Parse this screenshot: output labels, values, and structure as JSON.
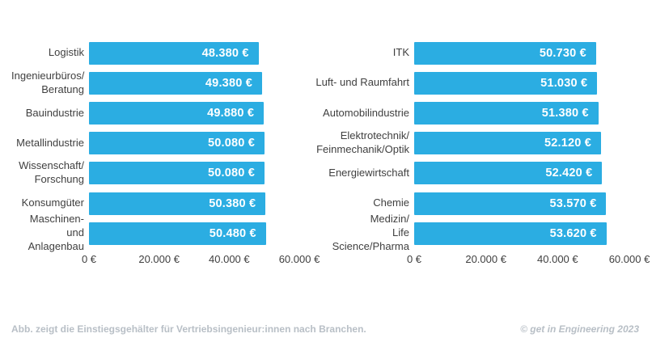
{
  "colors": {
    "bar": "#2BADE2",
    "category_text": "#3F3F3F",
    "value_text": "#FFFFFF",
    "footer_text": "#B8BFC6"
  },
  "footer": {
    "caption": "Abb. zeigt die Einstiegsgehälter für Vertriebsingenieur:innen nach Branchen.",
    "credit": "© get in Engineering 2023"
  },
  "chart_data": [
    {
      "type": "bar",
      "orientation": "horizontal",
      "title": "",
      "xlabel": "",
      "ylabel": "",
      "xlim": [
        0,
        60000
      ],
      "grid": false,
      "legend": false,
      "categories": [
        "Logistik",
        "Ingenieurbüros/\nBeratung",
        "Bauindustrie",
        "Metallindustrie",
        "Wissenschaft/\nForschung",
        "Konsumgüter",
        "Maschinen- und\nAnlagenbau"
      ],
      "values": [
        48380,
        49380,
        49880,
        50080,
        50080,
        50380,
        50480
      ],
      "value_labels": [
        "48.380 €",
        "49.380 €",
        "49.880 €",
        "50.080 €",
        "50.080 €",
        "50.380 €",
        "50.480 €"
      ],
      "x_ticks": [
        {
          "value": 0,
          "label": "0 €"
        },
        {
          "value": 20000,
          "label": "20.000 €"
        },
        {
          "value": 40000,
          "label": "40.000 €"
        },
        {
          "value": 60000,
          "label": "60.000 €"
        }
      ]
    },
    {
      "type": "bar",
      "orientation": "horizontal",
      "title": "",
      "xlabel": "",
      "ylabel": "",
      "xlim": [
        0,
        60000
      ],
      "grid": false,
      "legend": false,
      "categories": [
        "ITK",
        "Luft- und Raumfahrt",
        "Automobilindustrie",
        "Elektrotechnik/\nFeinmechanik/Optik",
        "Energiewirtschaft",
        "Chemie",
        "Medizin/\nLife Science/Pharma"
      ],
      "values": [
        50730,
        51030,
        51380,
        52120,
        52420,
        53570,
        53620
      ],
      "value_labels": [
        "50.730 €",
        "51.030 €",
        "51.380 €",
        "52.120 €",
        "52.420 €",
        "53.570 €",
        "53.620 €"
      ],
      "x_ticks": [
        {
          "value": 0,
          "label": "0 €"
        },
        {
          "value": 20000,
          "label": "20.000 €"
        },
        {
          "value": 40000,
          "label": "40.000 €"
        },
        {
          "value": 60000,
          "label": "60.000 €"
        }
      ]
    }
  ]
}
